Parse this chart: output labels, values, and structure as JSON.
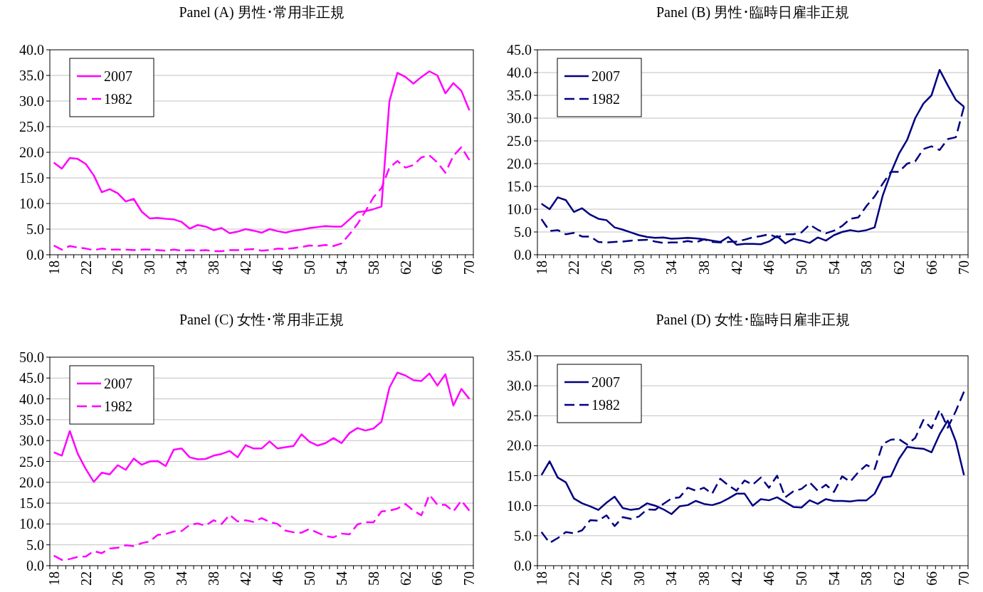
{
  "chart_data": [
    {
      "type": "line",
      "title": "Panel (A) 男性･常用非正規",
      "categories": [
        "18",
        null,
        null,
        null,
        "22",
        null,
        null,
        null,
        "26",
        null,
        null,
        null,
        "30",
        null,
        null,
        null,
        "34",
        null,
        null,
        null,
        "38",
        null,
        null,
        null,
        "42",
        null,
        null,
        null,
        "46",
        null,
        null,
        null,
        "50",
        null,
        null,
        null,
        "54",
        null,
        null,
        null,
        "58",
        null,
        null,
        null,
        "62",
        null,
        null,
        null,
        "66",
        null,
        null,
        null,
        "70"
      ],
      "ylim": [
        0,
        40
      ],
      "yticks": [
        {
          "value": 0,
          "label": "0.0"
        },
        {
          "value": 5,
          "label": "5.0"
        },
        {
          "value": 10,
          "label": "10.0"
        },
        {
          "value": 15,
          "label": "15.0"
        },
        {
          "value": 20,
          "label": "20.0"
        },
        {
          "value": 25,
          "label": "25.0"
        },
        {
          "value": 30,
          "label": "30.0"
        },
        {
          "value": 35,
          "label": "35.0"
        },
        {
          "value": 40,
          "label": "40.0"
        }
      ],
      "grid": "y",
      "legend": "top left",
      "series": [
        {
          "name": "2007",
          "color": "#ff00ff",
          "line_style": "solid",
          "values": [
            18.0,
            16.8,
            18.9,
            18.7,
            17.7,
            15.5,
            12.2,
            12.8,
            12.0,
            10.4,
            10.9,
            8.4,
            7.1,
            7.2,
            7.0,
            6.9,
            6.4,
            5.1,
            5.8,
            5.5,
            4.8,
            5.2,
            4.2,
            4.5,
            5.0,
            4.7,
            4.3,
            5.0,
            4.6,
            4.3,
            4.7,
            4.9,
            5.2,
            5.4,
            5.6,
            5.5,
            5.5,
            6.9,
            8.3,
            8.5,
            8.9,
            9.4,
            30.0,
            35.5,
            34.7,
            33.4,
            34.7,
            35.8,
            35.0,
            31.5,
            33.5,
            32.0,
            28.2
          ]
        },
        {
          "name": "1982",
          "color": "#ff00ff",
          "line_style": "dashed",
          "values": [
            1.8,
            1.0,
            1.7,
            1.4,
            1.2,
            0.9,
            1.2,
            1.0,
            1.0,
            1.0,
            0.9,
            1.0,
            1.0,
            0.9,
            0.8,
            1.0,
            0.8,
            0.9,
            0.8,
            0.9,
            0.7,
            0.7,
            0.9,
            0.9,
            1.0,
            1.1,
            0.8,
            0.9,
            1.2,
            1.1,
            1.3,
            1.5,
            1.8,
            1.7,
            1.9,
            1.7,
            2.2,
            4.0,
            6.0,
            8.5,
            11.2,
            13.0,
            17.0,
            18.3,
            17.0,
            17.5,
            19.0,
            19.4,
            18.0,
            16.0,
            19.3,
            21.0,
            18.5
          ]
        }
      ]
    },
    {
      "type": "line",
      "title": "Panel (B) 男性･臨時日雇非正規",
      "categories": [
        "18",
        null,
        null,
        null,
        "22",
        null,
        null,
        null,
        "26",
        null,
        null,
        null,
        "30",
        null,
        null,
        null,
        "34",
        null,
        null,
        null,
        "38",
        null,
        null,
        null,
        "42",
        null,
        null,
        null,
        "46",
        null,
        null,
        null,
        "50",
        null,
        null,
        null,
        "54",
        null,
        null,
        null,
        "58",
        null,
        null,
        null,
        "62",
        null,
        null,
        null,
        "66",
        null,
        null,
        null,
        "70"
      ],
      "ylim": [
        0,
        45
      ],
      "yticks": [
        {
          "value": 0,
          "label": "0.0"
        },
        {
          "value": 5,
          "label": "5.0"
        },
        {
          "value": 10,
          "label": "10.0"
        },
        {
          "value": 15,
          "label": "15.0"
        },
        {
          "value": 20,
          "label": "20.0"
        },
        {
          "value": 25,
          "label": "25.0"
        },
        {
          "value": 30,
          "label": "30.0"
        },
        {
          "value": 35,
          "label": "35.0"
        },
        {
          "value": 40,
          "label": "40.0"
        },
        {
          "value": 45,
          "label": "45.0"
        }
      ],
      "grid": "y",
      "legend": "top left",
      "series": [
        {
          "name": "2007",
          "color": "#000080",
          "line_style": "solid",
          "values": [
            11.2,
            10.0,
            12.6,
            12.0,
            9.4,
            10.2,
            8.8,
            7.9,
            7.6,
            6.0,
            5.5,
            4.9,
            4.3,
            3.9,
            3.7,
            3.8,
            3.5,
            3.6,
            3.7,
            3.6,
            3.4,
            3.1,
            2.8,
            3.9,
            2.2,
            2.4,
            2.4,
            2.3,
            2.9,
            4.1,
            2.5,
            3.5,
            3.1,
            2.6,
            3.8,
            3.1,
            4.3,
            5.0,
            5.4,
            5.1,
            5.4,
            6.0,
            13.0,
            18.0,
            22.2,
            25.2,
            30.0,
            33.2,
            35.0,
            40.6,
            37.2,
            34.0,
            32.5
          ]
        },
        {
          "name": "1982",
          "color": "#000080",
          "line_style": "dashed",
          "values": [
            7.8,
            5.2,
            5.4,
            4.5,
            4.8,
            4.0,
            4.0,
            2.8,
            2.7,
            2.8,
            2.9,
            3.1,
            3.2,
            3.3,
            2.9,
            2.6,
            2.7,
            2.7,
            3.0,
            2.7,
            3.4,
            2.8,
            2.7,
            2.8,
            2.9,
            3.3,
            3.8,
            4.1,
            4.5,
            3.8,
            4.5,
            4.5,
            4.9,
            6.6,
            5.5,
            4.7,
            5.3,
            6.3,
            7.9,
            8.2,
            10.7,
            12.8,
            15.6,
            18.2,
            18.2,
            20.0,
            20.5,
            23.2,
            23.8,
            23.0,
            25.4,
            25.8,
            32.5
          ]
        }
      ]
    },
    {
      "type": "line",
      "title": "Panel (C) 女性･常用非正規",
      "categories": [
        "18",
        null,
        null,
        null,
        "22",
        null,
        null,
        null,
        "26",
        null,
        null,
        null,
        "30",
        null,
        null,
        null,
        "34",
        null,
        null,
        null,
        "38",
        null,
        null,
        null,
        "42",
        null,
        null,
        null,
        "46",
        null,
        null,
        null,
        "50",
        null,
        null,
        null,
        "54",
        null,
        null,
        null,
        "58",
        null,
        null,
        null,
        "62",
        null,
        null,
        null,
        "66",
        null,
        null,
        null,
        "70"
      ],
      "ylim": [
        0,
        50
      ],
      "yticks": [
        {
          "value": 0,
          "label": "0.0"
        },
        {
          "value": 5,
          "label": "5.0"
        },
        {
          "value": 10,
          "label": "10.0"
        },
        {
          "value": 15,
          "label": "15.0"
        },
        {
          "value": 20,
          "label": "20.0"
        },
        {
          "value": 25,
          "label": "25.0"
        },
        {
          "value": 30,
          "label": "30.0"
        },
        {
          "value": 35,
          "label": "35.0"
        },
        {
          "value": 40,
          "label": "40.0"
        },
        {
          "value": 45,
          "label": "45.0"
        },
        {
          "value": 50,
          "label": "50.0"
        }
      ],
      "grid": "y",
      "legend": "top left",
      "series": [
        {
          "name": "2007",
          "color": "#ff00ff",
          "line_style": "solid",
          "values": [
            27.2,
            26.4,
            32.3,
            26.8,
            23.2,
            20.1,
            22.3,
            21.9,
            24.1,
            23.0,
            25.7,
            24.2,
            25.0,
            25.1,
            23.9,
            27.8,
            28.1,
            26.0,
            25.5,
            25.6,
            26.4,
            26.8,
            27.5,
            26.0,
            28.9,
            28.1,
            28.1,
            29.8,
            28.1,
            28.4,
            28.7,
            31.5,
            29.7,
            28.8,
            29.4,
            30.6,
            29.4,
            31.8,
            33.0,
            32.4,
            32.9,
            34.5,
            42.7,
            46.3,
            45.6,
            44.5,
            44.3,
            46.1,
            43.2,
            45.9,
            38.4,
            42.4,
            40.0
          ]
        },
        {
          "name": "1982",
          "color": "#ff00ff",
          "line_style": "dashed",
          "values": [
            2.4,
            1.4,
            1.6,
            2.1,
            2.2,
            3.5,
            3.0,
            4.1,
            4.3,
            4.9,
            4.7,
            5.4,
            5.8,
            7.4,
            7.6,
            8.2,
            8.3,
            9.8,
            10.1,
            9.6,
            10.9,
            10.0,
            12.2,
            10.6,
            10.9,
            10.5,
            11.4,
            10.5,
            10.0,
            8.4,
            8.0,
            7.9,
            8.8,
            7.9,
            7.1,
            6.8,
            7.7,
            7.5,
            9.9,
            10.4,
            10.4,
            13.0,
            13.2,
            13.7,
            14.8,
            13.2,
            12.1,
            17.0,
            14.6,
            14.6,
            13.0,
            15.6,
            13.2
          ]
        }
      ]
    },
    {
      "type": "line",
      "title": "Panel (D) 女性･臨時日雇非正規",
      "categories": [
        "18",
        null,
        null,
        null,
        "22",
        null,
        null,
        null,
        "26",
        null,
        null,
        null,
        "30",
        null,
        null,
        null,
        "34",
        null,
        null,
        null,
        "38",
        null,
        null,
        null,
        "42",
        null,
        null,
        null,
        "46",
        null,
        null,
        null,
        "50",
        null,
        null,
        null,
        "54",
        null,
        null,
        null,
        "58",
        null,
        null,
        null,
        "62",
        null,
        null,
        null,
        "66",
        null,
        null,
        null,
        "70"
      ],
      "ylim": [
        0,
        35
      ],
      "yticks": [
        {
          "value": 0,
          "label": "0.0"
        },
        {
          "value": 5,
          "label": "5.0"
        },
        {
          "value": 10,
          "label": "10.0"
        },
        {
          "value": 15,
          "label": "15.0"
        },
        {
          "value": 20,
          "label": "20.0"
        },
        {
          "value": 25,
          "label": "25.0"
        },
        {
          "value": 30,
          "label": "30.0"
        },
        {
          "value": 35,
          "label": "35.0"
        }
      ],
      "grid": "y",
      "legend": "top left",
      "series": [
        {
          "name": "2007",
          "color": "#000080",
          "line_style": "solid",
          "values": [
            15.1,
            17.4,
            14.7,
            13.9,
            11.2,
            10.4,
            9.9,
            9.3,
            10.5,
            11.5,
            9.6,
            9.3,
            9.5,
            10.4,
            10.0,
            9.4,
            8.6,
            9.9,
            10.1,
            10.8,
            10.3,
            10.1,
            10.5,
            11.2,
            12.0,
            12.0,
            10.0,
            11.1,
            10.9,
            11.4,
            10.6,
            9.8,
            9.7,
            10.9,
            10.3,
            11.1,
            10.8,
            10.8,
            10.7,
            10.9,
            10.9,
            12.0,
            14.7,
            14.9,
            17.8,
            19.8,
            19.6,
            19.5,
            18.9,
            21.9,
            24.2,
            20.7,
            15.1
          ]
        },
        {
          "name": "1982",
          "color": "#000080",
          "line_style": "dashed",
          "values": [
            5.6,
            3.8,
            4.6,
            5.6,
            5.4,
            5.9,
            7.6,
            7.5,
            8.4,
            6.6,
            8.1,
            7.8,
            8.2,
            9.4,
            9.3,
            10.3,
            11.2,
            11.4,
            13.0,
            12.5,
            13.0,
            12.0,
            14.5,
            13.4,
            12.5,
            14.2,
            13.5,
            14.7,
            13.0,
            15.0,
            11.4,
            12.4,
            12.8,
            13.9,
            12.5,
            13.5,
            12.3,
            14.9,
            14.0,
            15.6,
            16.8,
            16.1,
            20.3,
            21.0,
            21.1,
            20.2,
            21.3,
            24.3,
            22.9,
            26.0,
            23.0,
            25.8,
            29.0
          ]
        }
      ]
    }
  ]
}
